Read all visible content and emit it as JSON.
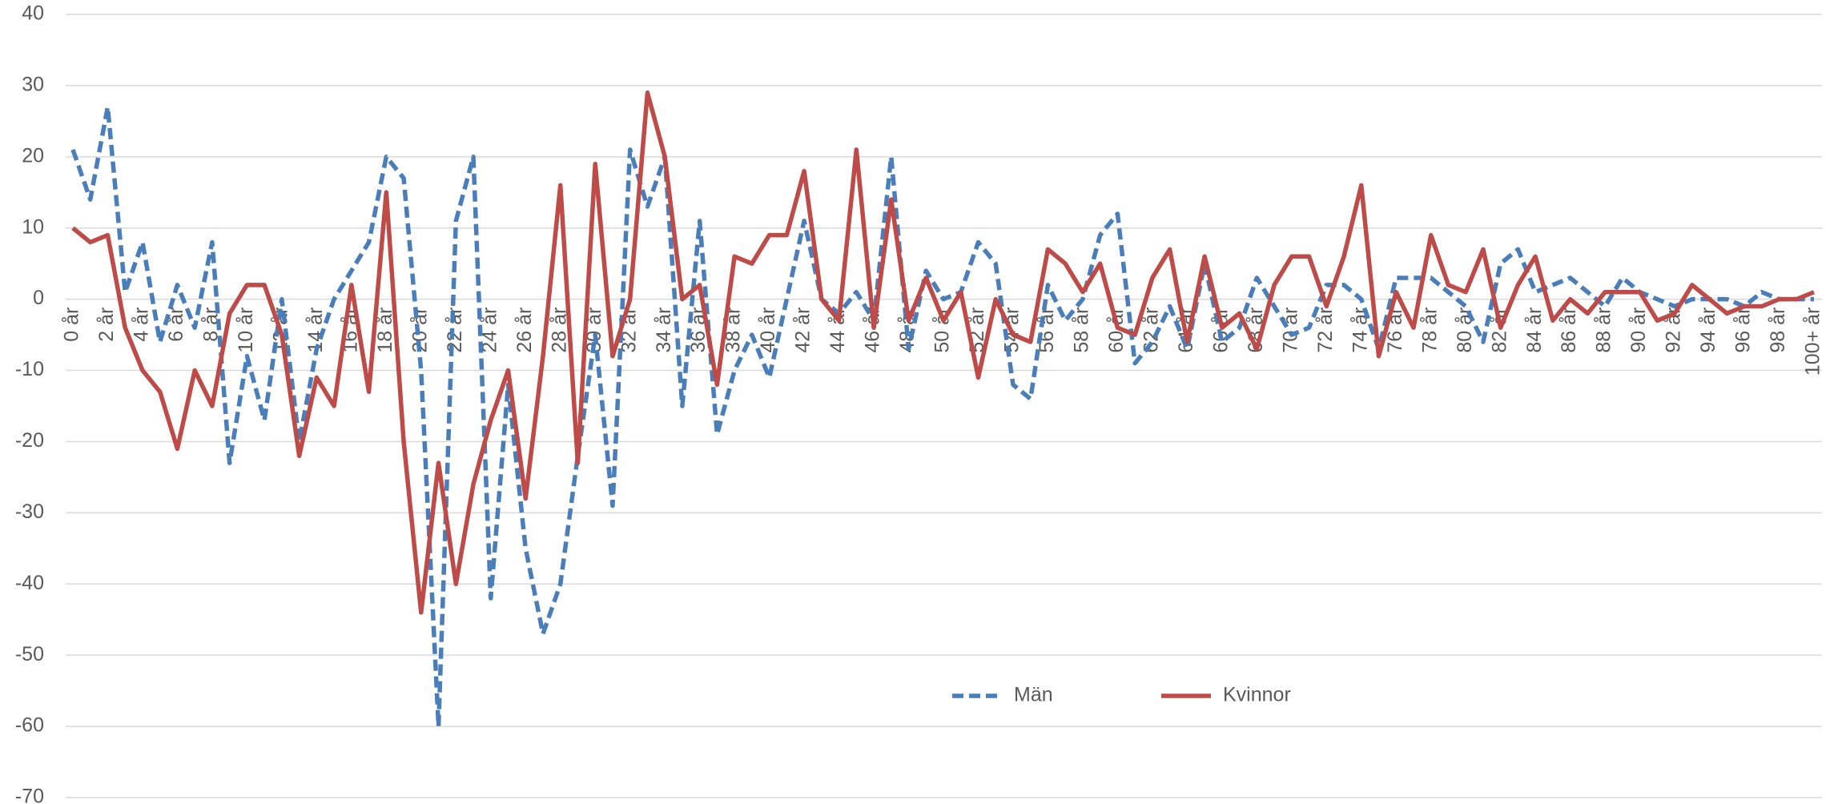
{
  "chart_data": {
    "type": "line",
    "categories": [
      "0 år",
      null,
      "2 år",
      null,
      "4 år",
      null,
      "6 år",
      null,
      "8 år",
      null,
      "10 år",
      null,
      "12 år",
      null,
      "14 år",
      null,
      "16 år",
      null,
      "18 år",
      null,
      "20 år",
      null,
      "22 år",
      null,
      "24 år",
      null,
      "26 år",
      null,
      "28 år",
      null,
      "30 år",
      null,
      "32 år",
      null,
      "34 år",
      null,
      "36 år",
      null,
      "38 år",
      null,
      "40 år",
      null,
      "42 år",
      null,
      "44 år",
      null,
      "46 år",
      null,
      "48 år",
      null,
      "50 år",
      null,
      "52 år",
      null,
      "54 år",
      null,
      "56 år",
      null,
      "58 år",
      null,
      "60 år",
      null,
      "62 år",
      null,
      "64 år",
      null,
      "66 år",
      null,
      "68 år",
      null,
      "70 år",
      null,
      "72 år",
      null,
      "74 år",
      null,
      "76 år",
      null,
      "78 år",
      null,
      "80 år",
      null,
      "82 år",
      null,
      "84 år",
      null,
      "86 år",
      null,
      "88 år",
      null,
      "90 år",
      null,
      "92 år",
      null,
      "94 år",
      null,
      "96 år",
      null,
      "98 år",
      null,
      "100+ år"
    ],
    "series": [
      {
        "name": "Män",
        "color": "#4a7ebb",
        "dashed": true,
        "values": [
          21,
          14,
          27,
          1,
          8,
          -6,
          2,
          -4,
          8,
          -23,
          -8,
          -17,
          0,
          -20,
          -7,
          0,
          4,
          8,
          20,
          17,
          -10,
          -60,
          11,
          20,
          -42,
          -12,
          -35,
          -47,
          -40,
          -22,
          -5,
          -29,
          21,
          13,
          20,
          -15,
          11,
          -19,
          -10,
          -5,
          -11,
          0,
          11,
          0,
          -2,
          1,
          -3,
          20,
          -7,
          4,
          0,
          1,
          8,
          5,
          -12,
          -14,
          2,
          -3,
          0,
          9,
          12,
          -9,
          -6,
          -1,
          -7,
          5,
          -6,
          -4,
          3,
          -1,
          -5,
          -4,
          2,
          2,
          0,
          -7,
          3,
          3,
          3,
          1,
          -1,
          -6,
          5,
          7,
          1,
          2,
          3,
          1,
          -1,
          3,
          1,
          0,
          -1,
          0,
          0,
          0,
          -1,
          1,
          0,
          0,
          0
        ]
      },
      {
        "name": "Kvinnor",
        "color": "#be4b48",
        "dashed": false,
        "values": [
          10,
          8,
          9,
          -4,
          -10,
          -13,
          -21,
          -10,
          -15,
          -2,
          2,
          2,
          -5,
          -22,
          -11,
          -15,
          2,
          -13,
          15,
          -20,
          -44,
          -23,
          -40,
          -26,
          -17,
          -10,
          -28,
          -8,
          16,
          -23,
          19,
          -8,
          0,
          29,
          20,
          0,
          2,
          -12,
          6,
          5,
          9,
          9,
          18,
          0,
          -3,
          21,
          -4,
          14,
          -3,
          3,
          -3,
          1,
          -11,
          0,
          -5,
          -6,
          7,
          5,
          1,
          5,
          -4,
          -5,
          3,
          7,
          -6,
          6,
          -4,
          -2,
          -7,
          2,
          6,
          6,
          -1,
          6,
          16,
          -8,
          1,
          -4,
          9,
          2,
          1,
          7,
          -4,
          2,
          6,
          -3,
          0,
          -2,
          1,
          1,
          1,
          -3,
          -2,
          2,
          0,
          -2,
          -1,
          -1,
          0,
          0,
          1
        ]
      }
    ],
    "ylim": [
      -70,
      40
    ],
    "yticks": [
      -70,
      -60,
      -50,
      -40,
      -30,
      -20,
      -10,
      0,
      10,
      20,
      30,
      40
    ],
    "grid": true,
    "legend": "bottom"
  }
}
